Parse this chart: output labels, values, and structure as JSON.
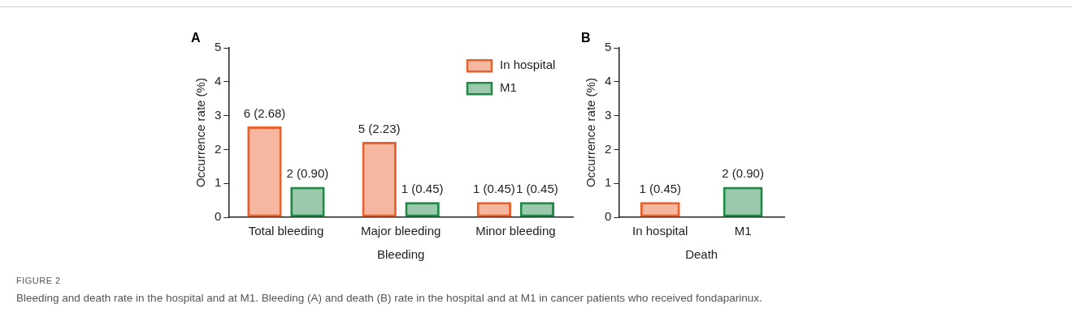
{
  "chart_data": [
    {
      "type": "bar",
      "title": "A",
      "xlabel": "Bleeding",
      "ylabel": "Occurrence rate (%)",
      "categories": [
        "Total bleeding",
        "Major bleeding",
        "Minor bleeding"
      ],
      "series": [
        {
          "name": "In hospital",
          "color": "#e8602c",
          "values": [
            2.68,
            2.23,
            0.45
          ],
          "value_labels": [
            "6 (2.68)",
            "5 (2.23)",
            "1 (0.45)"
          ]
        },
        {
          "name": "M1",
          "color": "#1e8a45",
          "values": [
            0.9,
            0.45,
            0.45
          ],
          "value_labels": [
            "2 (0.90)",
            "1 (0.45)",
            "1 (0.45)"
          ]
        }
      ],
      "ylim": [
        0,
        5
      ],
      "yticks": [
        0,
        1,
        2,
        3,
        4,
        5
      ],
      "grid": false,
      "legend": "top right",
      "annotations": [
        "FIGURE 2",
        "Bleeding and death rate in the hospital and at M1. Bleeding (A) and death (B) rate in the hospital and at M1 in cancer patients who received fondaparinux."
      ]
    },
    {
      "type": "bar",
      "title": "B",
      "xlabel": "Death",
      "ylabel": "Occurrence rate (%)",
      "categories": [
        "In hospital",
        "M1"
      ],
      "values": [
        0.45,
        0.9
      ],
      "colors": [
        "#e8602c",
        "#1e8a45"
      ],
      "value_labels": [
        "1 (0.45)",
        "2 (0.90)"
      ],
      "ylim": [
        0,
        5
      ],
      "yticks": [
        0,
        1,
        2,
        3,
        4,
        5
      ],
      "grid": false,
      "legend": false
    }
  ]
}
